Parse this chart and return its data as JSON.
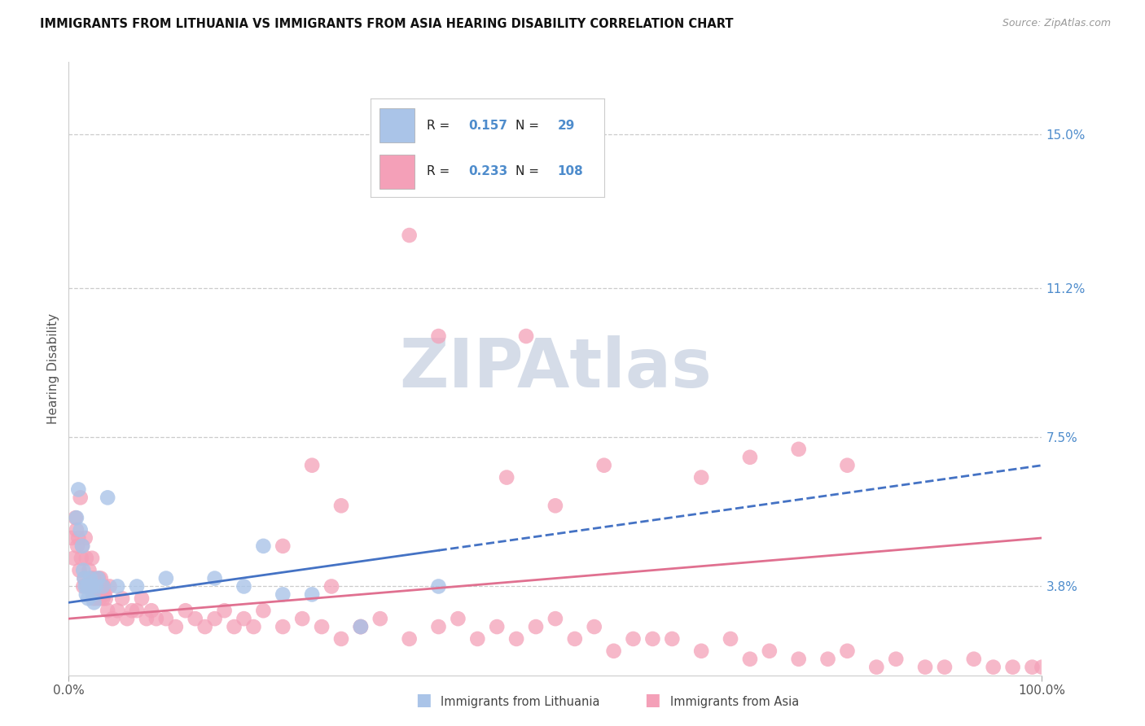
{
  "title": "IMMIGRANTS FROM LITHUANIA VS IMMIGRANTS FROM ASIA HEARING DISABILITY CORRELATION CHART",
  "source": "Source: ZipAtlas.com",
  "ylabel": "Hearing Disability",
  "x_min": 0.0,
  "x_max": 100.0,
  "y_min": 0.016,
  "y_max": 0.168,
  "yticks": [
    0.038,
    0.075,
    0.112,
    0.15
  ],
  "ytick_labels": [
    "3.8%",
    "7.5%",
    "11.2%",
    "15.0%"
  ],
  "legend_R1": "0.157",
  "legend_N1": "29",
  "legend_R2": "0.233",
  "legend_N2": "108",
  "color_lithuania": "#aac4e8",
  "color_asia": "#f4a0b8",
  "color_trendline_lith": "#4472c4",
  "color_trendline_asia": "#e07090",
  "background_color": "#ffffff",
  "grid_color": "#cccccc",
  "title_color": "#111111",
  "right_tick_color": "#4e8ccc",
  "watermark_color": "#d5dce8",
  "title_fontsize": 10.5,
  "tick_fontsize": 11,
  "series_lithuania_x": [
    0.8,
    1.0,
    1.2,
    1.4,
    1.5,
    1.6,
    1.7,
    1.8,
    1.9,
    2.0,
    2.1,
    2.2,
    2.3,
    2.5,
    2.6,
    2.8,
    3.0,
    3.5,
    4.0,
    5.0,
    7.0,
    10.0,
    15.0,
    18.0,
    20.0,
    22.0,
    25.0,
    30.0,
    38.0
  ],
  "series_lithuania_y": [
    0.055,
    0.062,
    0.052,
    0.048,
    0.042,
    0.04,
    0.038,
    0.036,
    0.038,
    0.035,
    0.038,
    0.04,
    0.038,
    0.036,
    0.034,
    0.038,
    0.04,
    0.038,
    0.06,
    0.038,
    0.038,
    0.04,
    0.04,
    0.038,
    0.048,
    0.036,
    0.036,
    0.028,
    0.038
  ],
  "series_asia_x": [
    0.3,
    0.5,
    0.7,
    0.8,
    0.9,
    1.0,
    1.1,
    1.2,
    1.3,
    1.4,
    1.5,
    1.6,
    1.7,
    1.8,
    1.9,
    2.0,
    2.1,
    2.2,
    2.3,
    2.4,
    2.5,
    2.6,
    2.7,
    2.8,
    2.9,
    3.0,
    3.1,
    3.2,
    3.3,
    3.4,
    3.5,
    3.6,
    3.7,
    3.8,
    4.0,
    4.2,
    4.5,
    5.0,
    5.5,
    6.0,
    6.5,
    7.0,
    7.5,
    8.0,
    8.5,
    9.0,
    10.0,
    11.0,
    12.0,
    13.0,
    14.0,
    15.0,
    16.0,
    17.0,
    18.0,
    19.0,
    20.0,
    22.0,
    24.0,
    26.0,
    28.0,
    30.0,
    32.0,
    35.0,
    38.0,
    40.0,
    42.0,
    44.0,
    46.0,
    48.0,
    50.0,
    52.0,
    54.0,
    56.0,
    58.0,
    60.0,
    62.0,
    65.0,
    68.0,
    70.0,
    72.0,
    75.0,
    78.0,
    80.0,
    83.0,
    85.0,
    88.0,
    90.0,
    93.0,
    95.0,
    97.0,
    99.0,
    100.0,
    45.0,
    47.0,
    35.0,
    38.0,
    28.0,
    30.0,
    25.0,
    27.0,
    22.0,
    50.0,
    55.0,
    65.0,
    70.0,
    75.0,
    80.0
  ],
  "series_asia_y": [
    0.05,
    0.045,
    0.055,
    0.052,
    0.048,
    0.05,
    0.042,
    0.06,
    0.045,
    0.048,
    0.038,
    0.04,
    0.05,
    0.045,
    0.038,
    0.038,
    0.042,
    0.038,
    0.04,
    0.045,
    0.035,
    0.04,
    0.038,
    0.035,
    0.038,
    0.038,
    0.04,
    0.035,
    0.04,
    0.038,
    0.035,
    0.038,
    0.036,
    0.035,
    0.032,
    0.038,
    0.03,
    0.032,
    0.035,
    0.03,
    0.032,
    0.032,
    0.035,
    0.03,
    0.032,
    0.03,
    0.03,
    0.028,
    0.032,
    0.03,
    0.028,
    0.03,
    0.032,
    0.028,
    0.03,
    0.028,
    0.032,
    0.028,
    0.03,
    0.028,
    0.025,
    0.028,
    0.03,
    0.025,
    0.028,
    0.03,
    0.025,
    0.028,
    0.025,
    0.028,
    0.03,
    0.025,
    0.028,
    0.022,
    0.025,
    0.025,
    0.025,
    0.022,
    0.025,
    0.02,
    0.022,
    0.02,
    0.02,
    0.022,
    0.018,
    0.02,
    0.018,
    0.018,
    0.02,
    0.018,
    0.018,
    0.018,
    0.018,
    0.065,
    0.1,
    0.125,
    0.1,
    0.058,
    0.028,
    0.068,
    0.038,
    0.048,
    0.058,
    0.068,
    0.065,
    0.07,
    0.072,
    0.068
  ],
  "trendline_lith_x0": 0.0,
  "trendline_lith_x1": 100.0,
  "trendline_lith_y0": 0.034,
  "trendline_lith_y1": 0.068,
  "trendline_lith_solid_x1": 38.0,
  "trendline_asia_x0": 0.0,
  "trendline_asia_x1": 100.0,
  "trendline_asia_y0": 0.03,
  "trendline_asia_y1": 0.05
}
